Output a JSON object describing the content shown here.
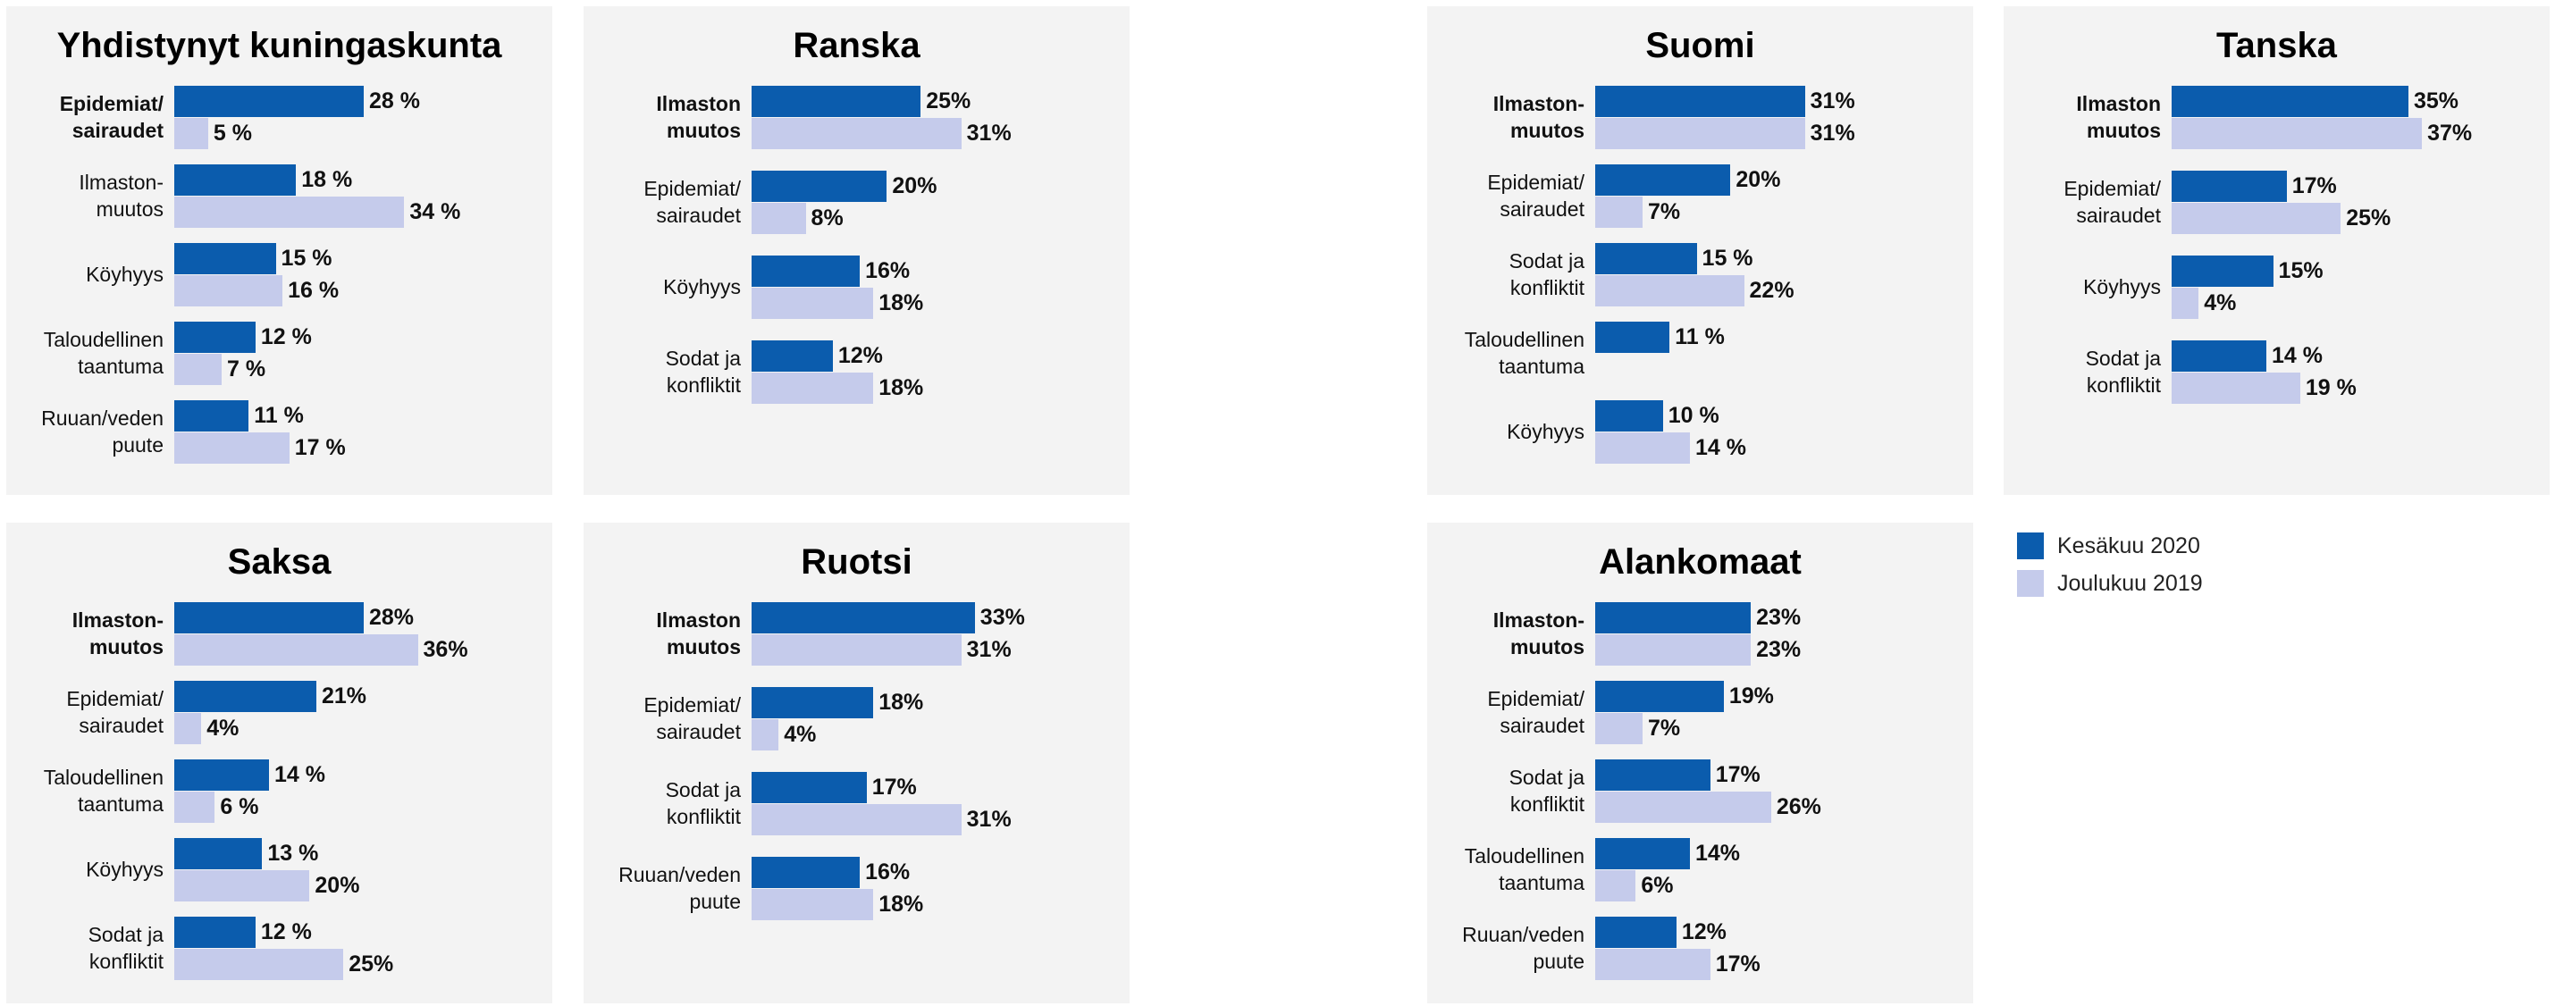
{
  "legend": {
    "items": [
      {
        "name": "Kesäkuu 2020",
        "color": "#0b5cad"
      },
      {
        "name": "Joulukuu 2019",
        "color": "#c5cbeb"
      }
    ]
  },
  "chart_data": [
    {
      "type": "bar",
      "orientation": "horizontal",
      "title": "Yhdistynyt kuningaskunta",
      "categories": [
        "Epidemiat/\nsairaudet",
        "Ilmaston-\nmuutos",
        "Köyhyys",
        "Taloudellinen\ntaantuma",
        "Ruuan/veden\npuute"
      ],
      "series": [
        {
          "values": [
            28,
            18,
            15,
            12,
            11
          ],
          "value_labels": [
            "28 %",
            "18 %",
            "15 %",
            "12 %",
            "11 %"
          ]
        },
        {
          "values": [
            5,
            34,
            16,
            7,
            17
          ],
          "value_labels": [
            "5 %",
            "34 %",
            "16 %",
            "7 %",
            "17 %"
          ]
        }
      ]
    },
    {
      "type": "bar",
      "orientation": "horizontal",
      "title": "Ranska",
      "categories": [
        "Ilmaston\nmuutos",
        "Epidemiat/\nsairaudet",
        "Köyhyys",
        "Sodat ja\nkonfliktit"
      ],
      "series": [
        {
          "values": [
            25,
            20,
            16,
            12
          ],
          "value_labels": [
            "25%",
            "20%",
            "16%",
            "12%"
          ]
        },
        {
          "values": [
            31,
            8,
            18,
            18
          ],
          "value_labels": [
            "31%",
            "8%",
            "18%",
            "18%"
          ]
        }
      ]
    },
    {
      "type": "bar",
      "orientation": "horizontal",
      "title": "Suomi",
      "categories": [
        "Ilmaston-\nmuutos",
        "Epidemiat/\nsairaudet",
        "Sodat ja\nkonfliktit",
        "Taloudellinen\ntaantuma",
        "Köyhyys"
      ],
      "series": [
        {
          "values": [
            31,
            20,
            15,
            11,
            10
          ],
          "value_labels": [
            "31%",
            "20%",
            "15 %",
            "11 %",
            "10 %"
          ]
        },
        {
          "values": [
            31,
            7,
            22,
            null,
            14
          ],
          "value_labels": [
            "31%",
            "7%",
            "22%",
            null,
            "14 %"
          ]
        }
      ]
    },
    {
      "type": "bar",
      "orientation": "horizontal",
      "title": "Tanska",
      "categories": [
        "Ilmaston\nmuutos",
        "Epidemiat/\nsairaudet",
        "Köyhyys",
        "Sodat ja\nkonfliktit"
      ],
      "series": [
        {
          "values": [
            35,
            17,
            15,
            14
          ],
          "value_labels": [
            "35%",
            "17%",
            "15%",
            "14 %"
          ]
        },
        {
          "values": [
            37,
            25,
            4,
            19
          ],
          "value_labels": [
            "37%",
            "25%",
            "4%",
            "19 %"
          ]
        }
      ]
    },
    {
      "type": "bar",
      "orientation": "horizontal",
      "title": "Saksa",
      "categories": [
        "Ilmaston-\nmuutos",
        "Epidemiat/\nsairaudet",
        "Taloudellinen\ntaantuma",
        "Köyhyys",
        "Sodat ja\nkonfliktit"
      ],
      "series": [
        {
          "values": [
            28,
            21,
            14,
            13,
            12
          ],
          "value_labels": [
            "28%",
            "21%",
            "14 %",
            "13 %",
            "12 %"
          ]
        },
        {
          "values": [
            36,
            4,
            6,
            20,
            25
          ],
          "value_labels": [
            "36%",
            "4%",
            "6 %",
            "20%",
            "25%"
          ]
        }
      ]
    },
    {
      "type": "bar",
      "orientation": "horizontal",
      "title": "Ruotsi",
      "categories": [
        "Ilmaston\nmuutos",
        "Epidemiat/\nsairaudet",
        "Sodat ja\nkonfliktit",
        "Ruuan/veden\npuute"
      ],
      "series": [
        {
          "values": [
            33,
            18,
            17,
            16
          ],
          "value_labels": [
            "33%",
            "18%",
            "17%",
            "16%"
          ]
        },
        {
          "values": [
            31,
            4,
            31,
            18
          ],
          "value_labels": [
            "31%",
            "4%",
            "31%",
            "18%"
          ]
        }
      ]
    },
    {
      "type": "bar",
      "orientation": "horizontal",
      "title": "Alankomaat",
      "categories": [
        "Ilmaston-\nmuutos",
        "Epidemiat/\nsairaudet",
        "Sodat ja\nkonfliktit",
        "Taloudellinen\ntaantuma",
        "Ruuan/veden\npuute"
      ],
      "series": [
        {
          "values": [
            23,
            19,
            17,
            14,
            12
          ],
          "value_labels": [
            "23%",
            "19%",
            "17%",
            "14%",
            "12%"
          ]
        },
        {
          "values": [
            23,
            7,
            26,
            6,
            17
          ],
          "value_labels": [
            "23%",
            "7%",
            "26%",
            "6%",
            "17%"
          ]
        }
      ]
    }
  ]
}
